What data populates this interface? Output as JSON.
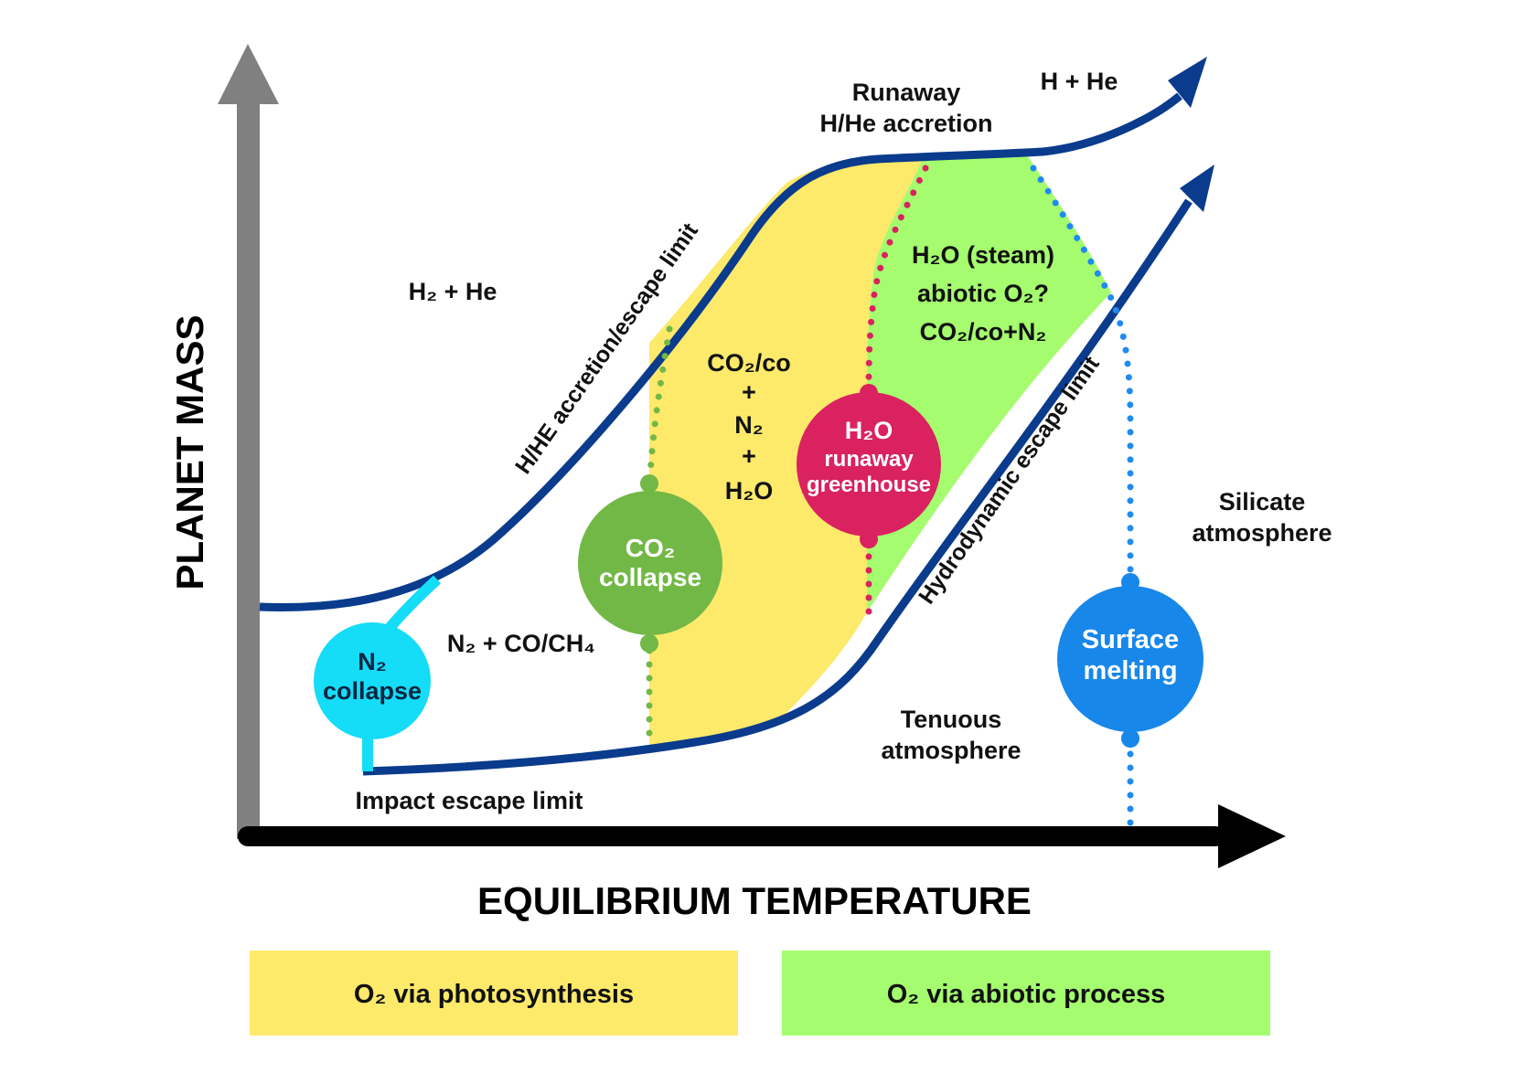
{
  "axes": {
    "y_title": "PLANET MASS",
    "x_title": "EQUILIBRIUM TEMPERATURE"
  },
  "curves": {
    "accretion_label": "H/HE accretion/escape limit",
    "hydro_label": "Hydrodynamic escape limit",
    "impact_label": "Impact escape limit"
  },
  "regions": {
    "runaway_1": "Runaway",
    "runaway_2": "H/He accretion",
    "h_he": "H + He",
    "h2_he": "H₂ + He",
    "n2_co": "N₂ + CO/CH₄",
    "yellow_1": "CO₂/co",
    "yellow_2": "+",
    "yellow_3": "N₂",
    "yellow_4": "+",
    "yellow_5": "H₂O",
    "green_1": "H₂O (steam)",
    "green_2": "abiotic O₂?",
    "green_3": "CO₂/co+N₂",
    "silicate_1": "Silicate",
    "silicate_2": "atmosphere",
    "tenuous_1": "Tenuous",
    "tenuous_2": "atmosphere"
  },
  "circles": {
    "n2_1": "N₂",
    "n2_2": "collapse",
    "co2_1": "CO₂",
    "co2_2": "collapse",
    "h2o_1": "H₂O",
    "h2o_2": "runaway",
    "h2o_3": "greenhouse",
    "surface_1": "Surface",
    "surface_2": "melting"
  },
  "legend": {
    "photosynthesis": "O₂ via photosynthesis",
    "abiotic": "O₂ via abiotic process"
  },
  "colors": {
    "curve": "#0a3b8c",
    "yellow": "#fde96a",
    "green": "#a4fc6e",
    "n2": "#15dcf7",
    "co2": "#72b846",
    "h2o": "#d9225f",
    "surface": "#1787ea",
    "dotted_blue": "#1f8bf0",
    "axis_y": "#808080",
    "axis_x": "#000000"
  }
}
